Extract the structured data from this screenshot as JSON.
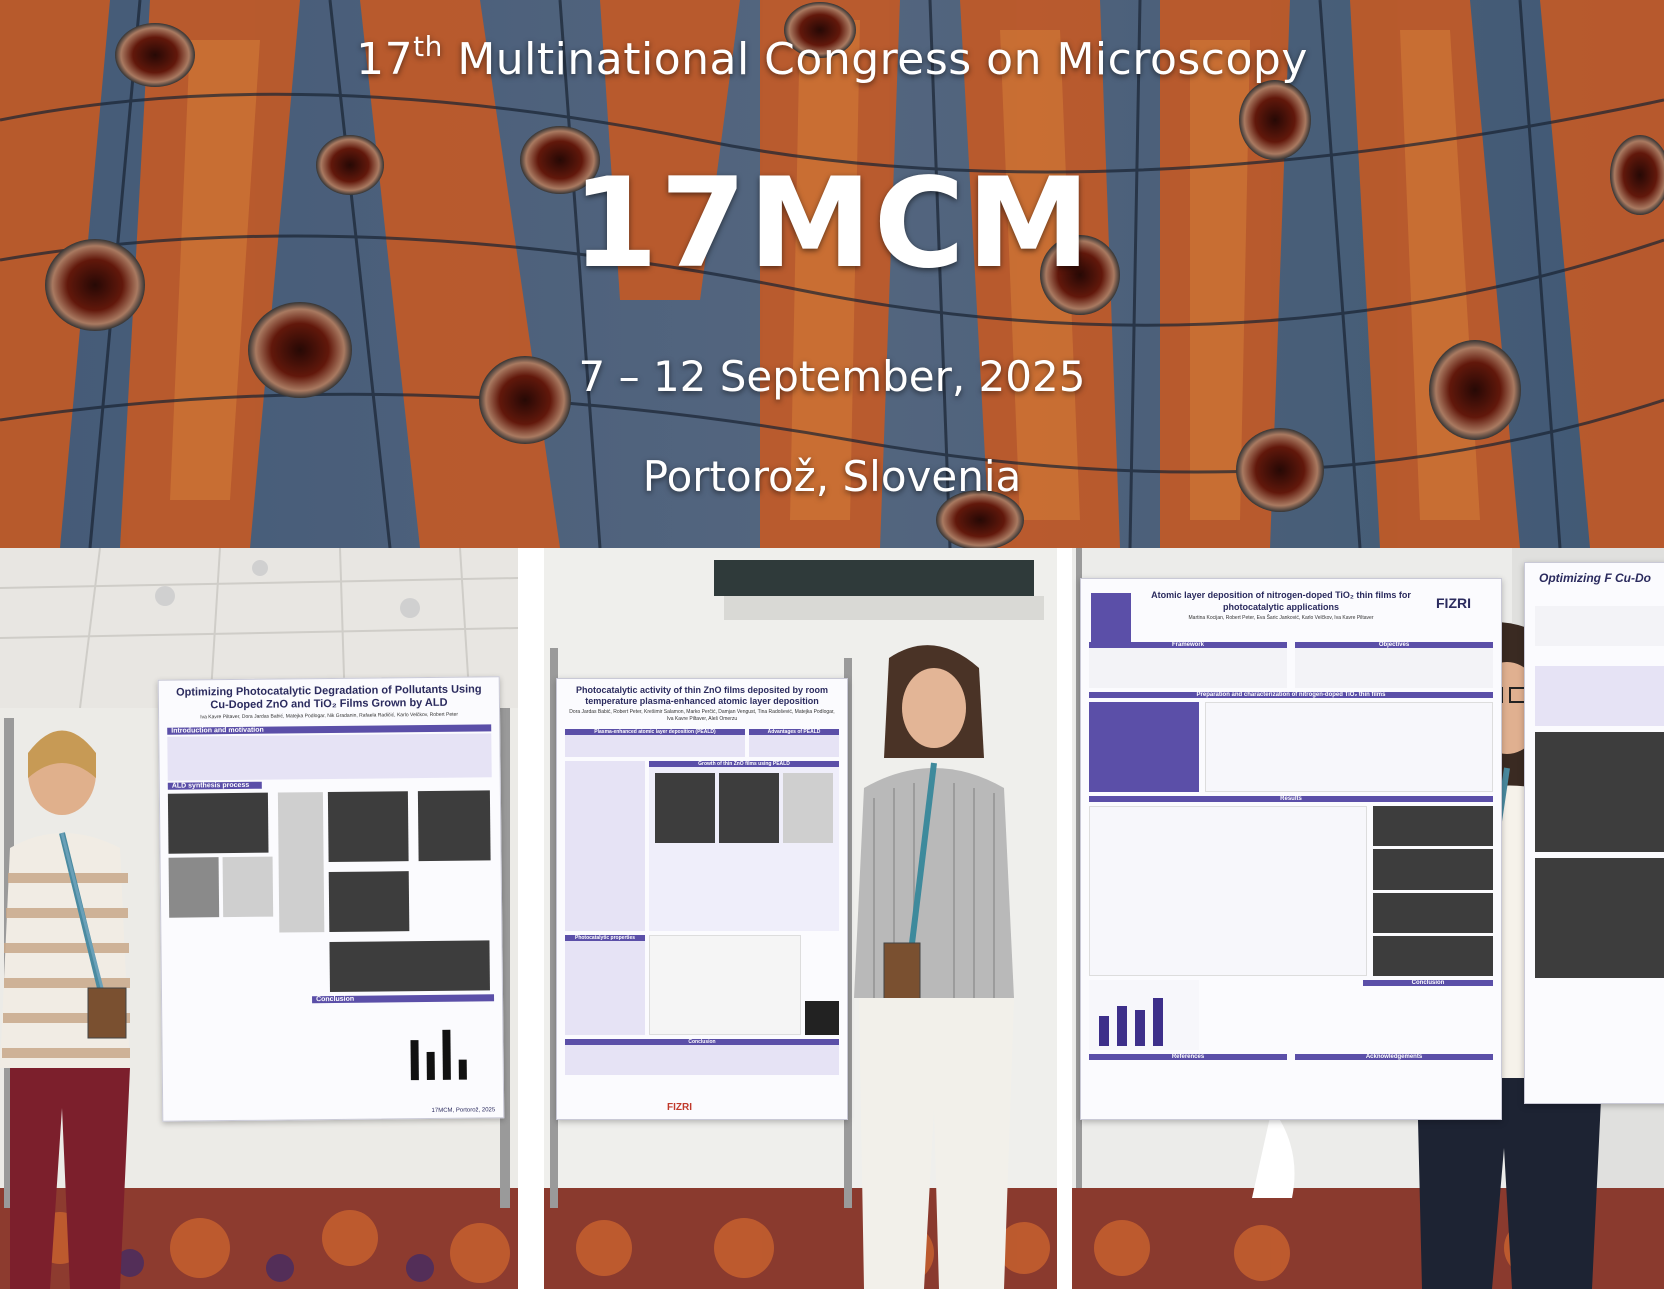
{
  "banner": {
    "subtitle_ordinal": "17",
    "subtitle_suffix": "th",
    "subtitle_rest": " Multinational Congress on Microscopy",
    "acronym": "17MCM",
    "dates": "7 – 12 September, 2025",
    "place": "Portorož, Slovenia"
  },
  "poster1": {
    "title": "Optimizing Photocatalytic Degradation of Pollutants Using Cu-Doped ZnO and TiO₂ Films Grown by ALD",
    "authors": "Iva Kavre Piltaver, Dora Jardas Babić, Matejka Podlogar, Nik Gradanin, Rafaela Radičić, Karlo Velčkov, Robert Peter",
    "sections": [
      "Introduction and motivation",
      "ALD synthesis process",
      "Conclusion"
    ],
    "footer": "17MCM, Portorož, 2025"
  },
  "poster2": {
    "title": "Photocatalytic activity of thin ZnO films deposited by room temperature plasma-enhanced atomic layer deposition",
    "authors": "Dora Jardas Babić, Robert Peter, Krešimir Salamon, Marko Perčić, Damjan Vengust, Tina Radošević, Matejka Podlogar, Iva Kavre Piltaver, Aleš Omerzu",
    "sections": [
      "Plasma-enhanced atomic layer deposition (PEALD)",
      "Advantages of PEALD",
      "Growth of thin ZnO films using PEALD",
      "Photocatalytic properties",
      "Conclusion"
    ],
    "logo": "FIZRI"
  },
  "poster3": {
    "title": "Atomic layer deposition of nitrogen-doped TiO₂ thin films for photocatalytic applications",
    "authors": "Martina Kocijan, Robert Peter, Eva Šaric Janković, Karlo Velčkov, Iva Kavre Piltaver",
    "sections": [
      "Framework",
      "Objectives",
      "Preparation and characterization of nitrogen-doped TiO₂ thin films",
      "Results",
      "Conclusion",
      "References",
      "Acknowledgements"
    ],
    "logo": "FIZRI",
    "side_title": "Optimizing F Cu-Do"
  },
  "colors": {
    "poster_accent": "#5b4fa8",
    "banner_orange": "#d4692a",
    "banner_blue": "#4d6a8c"
  }
}
